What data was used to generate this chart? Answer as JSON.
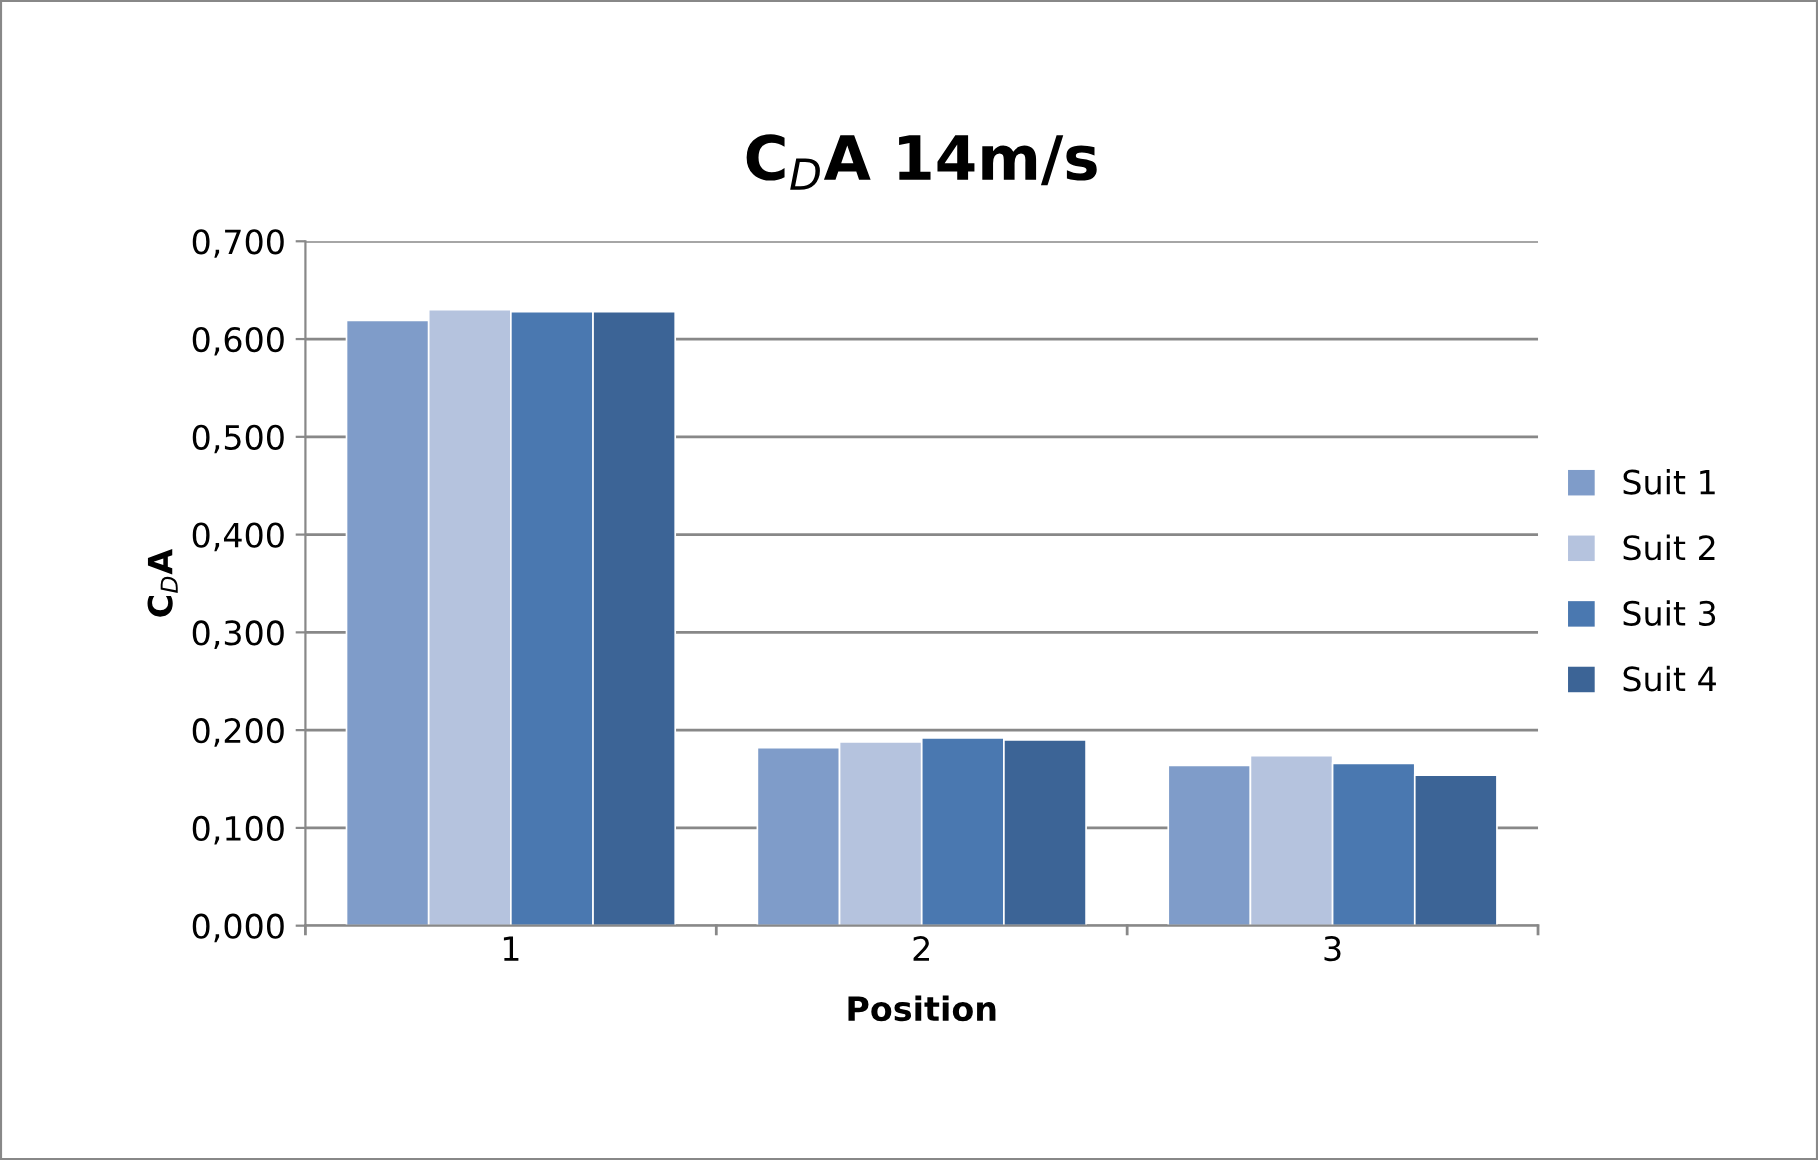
{
  "chart_data": {
    "type": "bar",
    "title": "C$_{D}$A 14m/s",
    "xlabel": "Position",
    "ylabel": "C$_{D}$A",
    "categories": [
      "1",
      "2",
      "3"
    ],
    "series": [
      {
        "name": "Suit 1",
        "color": "#7f9cc9",
        "values": [
          0.619,
          0.182,
          0.164
        ]
      },
      {
        "name": "Suit 2",
        "color": "#b5c3de",
        "values": [
          0.63,
          0.188,
          0.174
        ]
      },
      {
        "name": "Suit 3",
        "color": "#4a78b0",
        "values": [
          0.628,
          0.192,
          0.166
        ]
      },
      {
        "name": "Suit 4",
        "color": "#3c6496",
        "values": [
          0.628,
          0.19,
          0.154
        ]
      }
    ],
    "ylim": [
      0,
      0.7
    ],
    "yticks": [
      {
        "value": 0,
        "label": "0,000"
      },
      {
        "value": 0.1,
        "label": "0,100"
      },
      {
        "value": 0.2,
        "label": "0,200"
      },
      {
        "value": 0.3,
        "label": "0,300"
      },
      {
        "value": 0.4,
        "label": "0,400"
      },
      {
        "value": 0.5,
        "label": "0,500"
      },
      {
        "value": 0.6,
        "label": "0,600"
      },
      {
        "value": 0.7,
        "label": "0,700"
      }
    ],
    "grid": "y",
    "legend": "right"
  }
}
